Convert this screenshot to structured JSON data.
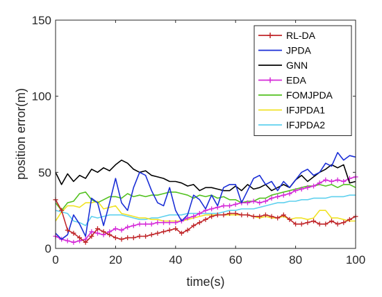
{
  "chart_data": {
    "type": "line",
    "xlabel": "time(s)",
    "ylabel": "position error(m)",
    "xlim": [
      0,
      100
    ],
    "ylim": [
      0,
      150
    ],
    "xticks": [
      0,
      20,
      40,
      60,
      80,
      100
    ],
    "yticks": [
      0,
      50,
      100,
      150
    ],
    "grid": false,
    "legend_position": "top-right",
    "x": [
      0,
      2,
      4,
      6,
      8,
      10,
      12,
      14,
      16,
      18,
      20,
      22,
      24,
      26,
      28,
      30,
      32,
      34,
      36,
      38,
      40,
      42,
      44,
      46,
      48,
      50,
      52,
      54,
      56,
      58,
      60,
      62,
      64,
      66,
      68,
      70,
      72,
      74,
      76,
      78,
      80,
      82,
      84,
      86,
      88,
      90,
      92,
      94,
      96,
      98,
      100
    ],
    "series": [
      {
        "name": "RL-DA",
        "color": "#c0262a",
        "marker": "+",
        "values": [
          32,
          25,
          12,
          10,
          7,
          4,
          8,
          13,
          11,
          9,
          7,
          6,
          7,
          7,
          8,
          8,
          9,
          10,
          11,
          12,
          13,
          10,
          12,
          15,
          17,
          19,
          21,
          22,
          22,
          23,
          23,
          22,
          22,
          21,
          21,
          22,
          21,
          20,
          22,
          19,
          16,
          16,
          17,
          18,
          16,
          16,
          18,
          16,
          17,
          19,
          21
        ]
      },
      {
        "name": "JPDA",
        "color": "#1a2ed6",
        "marker": "",
        "values": [
          10,
          6,
          9,
          22,
          16,
          8,
          33,
          30,
          15,
          30,
          46,
          30,
          25,
          40,
          50,
          48,
          38,
          30,
          28,
          40,
          25,
          18,
          22,
          35,
          32,
          26,
          35,
          28,
          40,
          42,
          42,
          30,
          38,
          46,
          48,
          42,
          44,
          38,
          44,
          40,
          45,
          50,
          52,
          48,
          50,
          56,
          54,
          63,
          58,
          61,
          60
        ]
      },
      {
        "name": "GNN",
        "color": "#000000",
        "marker": "",
        "values": [
          50,
          42,
          49,
          44,
          48,
          46,
          52,
          50,
          53,
          51,
          55,
          58,
          56,
          52,
          50,
          51,
          48,
          47,
          46,
          44,
          44,
          43,
          41,
          42,
          38,
          40,
          40,
          39,
          38,
          38,
          41,
          38,
          42,
          39,
          40,
          42,
          38,
          40,
          42,
          40,
          45,
          48,
          44,
          47,
          50,
          52,
          55,
          53,
          55,
          43,
          44
        ]
      },
      {
        "name": "EDA",
        "color": "#d52ad8",
        "marker": "+",
        "values": [
          8,
          6,
          5,
          4,
          5,
          6,
          11,
          10,
          9,
          11,
          13,
          12,
          14,
          15,
          16,
          16,
          16,
          17,
          17,
          17,
          17,
          18,
          20,
          21,
          23,
          25,
          26,
          27,
          28,
          28,
          29,
          30,
          30,
          31,
          30,
          31,
          33,
          34,
          35,
          36,
          38,
          39,
          40,
          41,
          43,
          45,
          44,
          45,
          44,
          46,
          47
        ]
      },
      {
        "name": "FOMJPDA",
        "color": "#52c11f",
        "marker": "",
        "values": [
          30,
          25,
          30,
          31,
          36,
          37,
          32,
          30,
          32,
          34,
          34,
          33,
          36,
          34,
          35,
          34,
          35,
          35,
          36,
          37,
          37,
          36,
          35,
          33,
          35,
          34,
          35,
          33,
          34,
          32,
          32,
          30,
          31,
          31,
          33,
          33,
          35,
          36,
          37,
          38,
          39,
          40,
          41,
          41,
          42,
          41,
          42,
          40,
          42,
          42,
          40
        ]
      },
      {
        "name": "IFJPDA1",
        "color": "#f0e224",
        "marker": "",
        "values": [
          18,
          24,
          28,
          28,
          27,
          30,
          30,
          31,
          26,
          27,
          28,
          23,
          22,
          21,
          20,
          20,
          19,
          19,
          18,
          18,
          18,
          18,
          19,
          20,
          21,
          22,
          22,
          22,
          22,
          22,
          22,
          22,
          22,
          21,
          20,
          21,
          20,
          20,
          21,
          19,
          20,
          20,
          19,
          20,
          25,
          25,
          20,
          20,
          19,
          18,
          18
        ]
      },
      {
        "name": "IFJPDA2",
        "color": "#5ed0ee",
        "marker": "",
        "values": [
          25,
          24,
          23,
          18,
          17,
          15,
          21,
          20,
          21,
          22,
          22,
          22,
          21,
          20,
          19,
          19,
          20,
          20,
          21,
          22,
          22,
          22,
          23,
          23,
          23,
          23,
          23,
          23,
          24,
          25,
          25,
          26,
          26,
          26,
          27,
          28,
          29,
          30,
          30,
          31,
          31,
          32,
          32,
          33,
          33,
          33,
          34,
          34,
          34,
          35,
          35
        ]
      }
    ]
  }
}
